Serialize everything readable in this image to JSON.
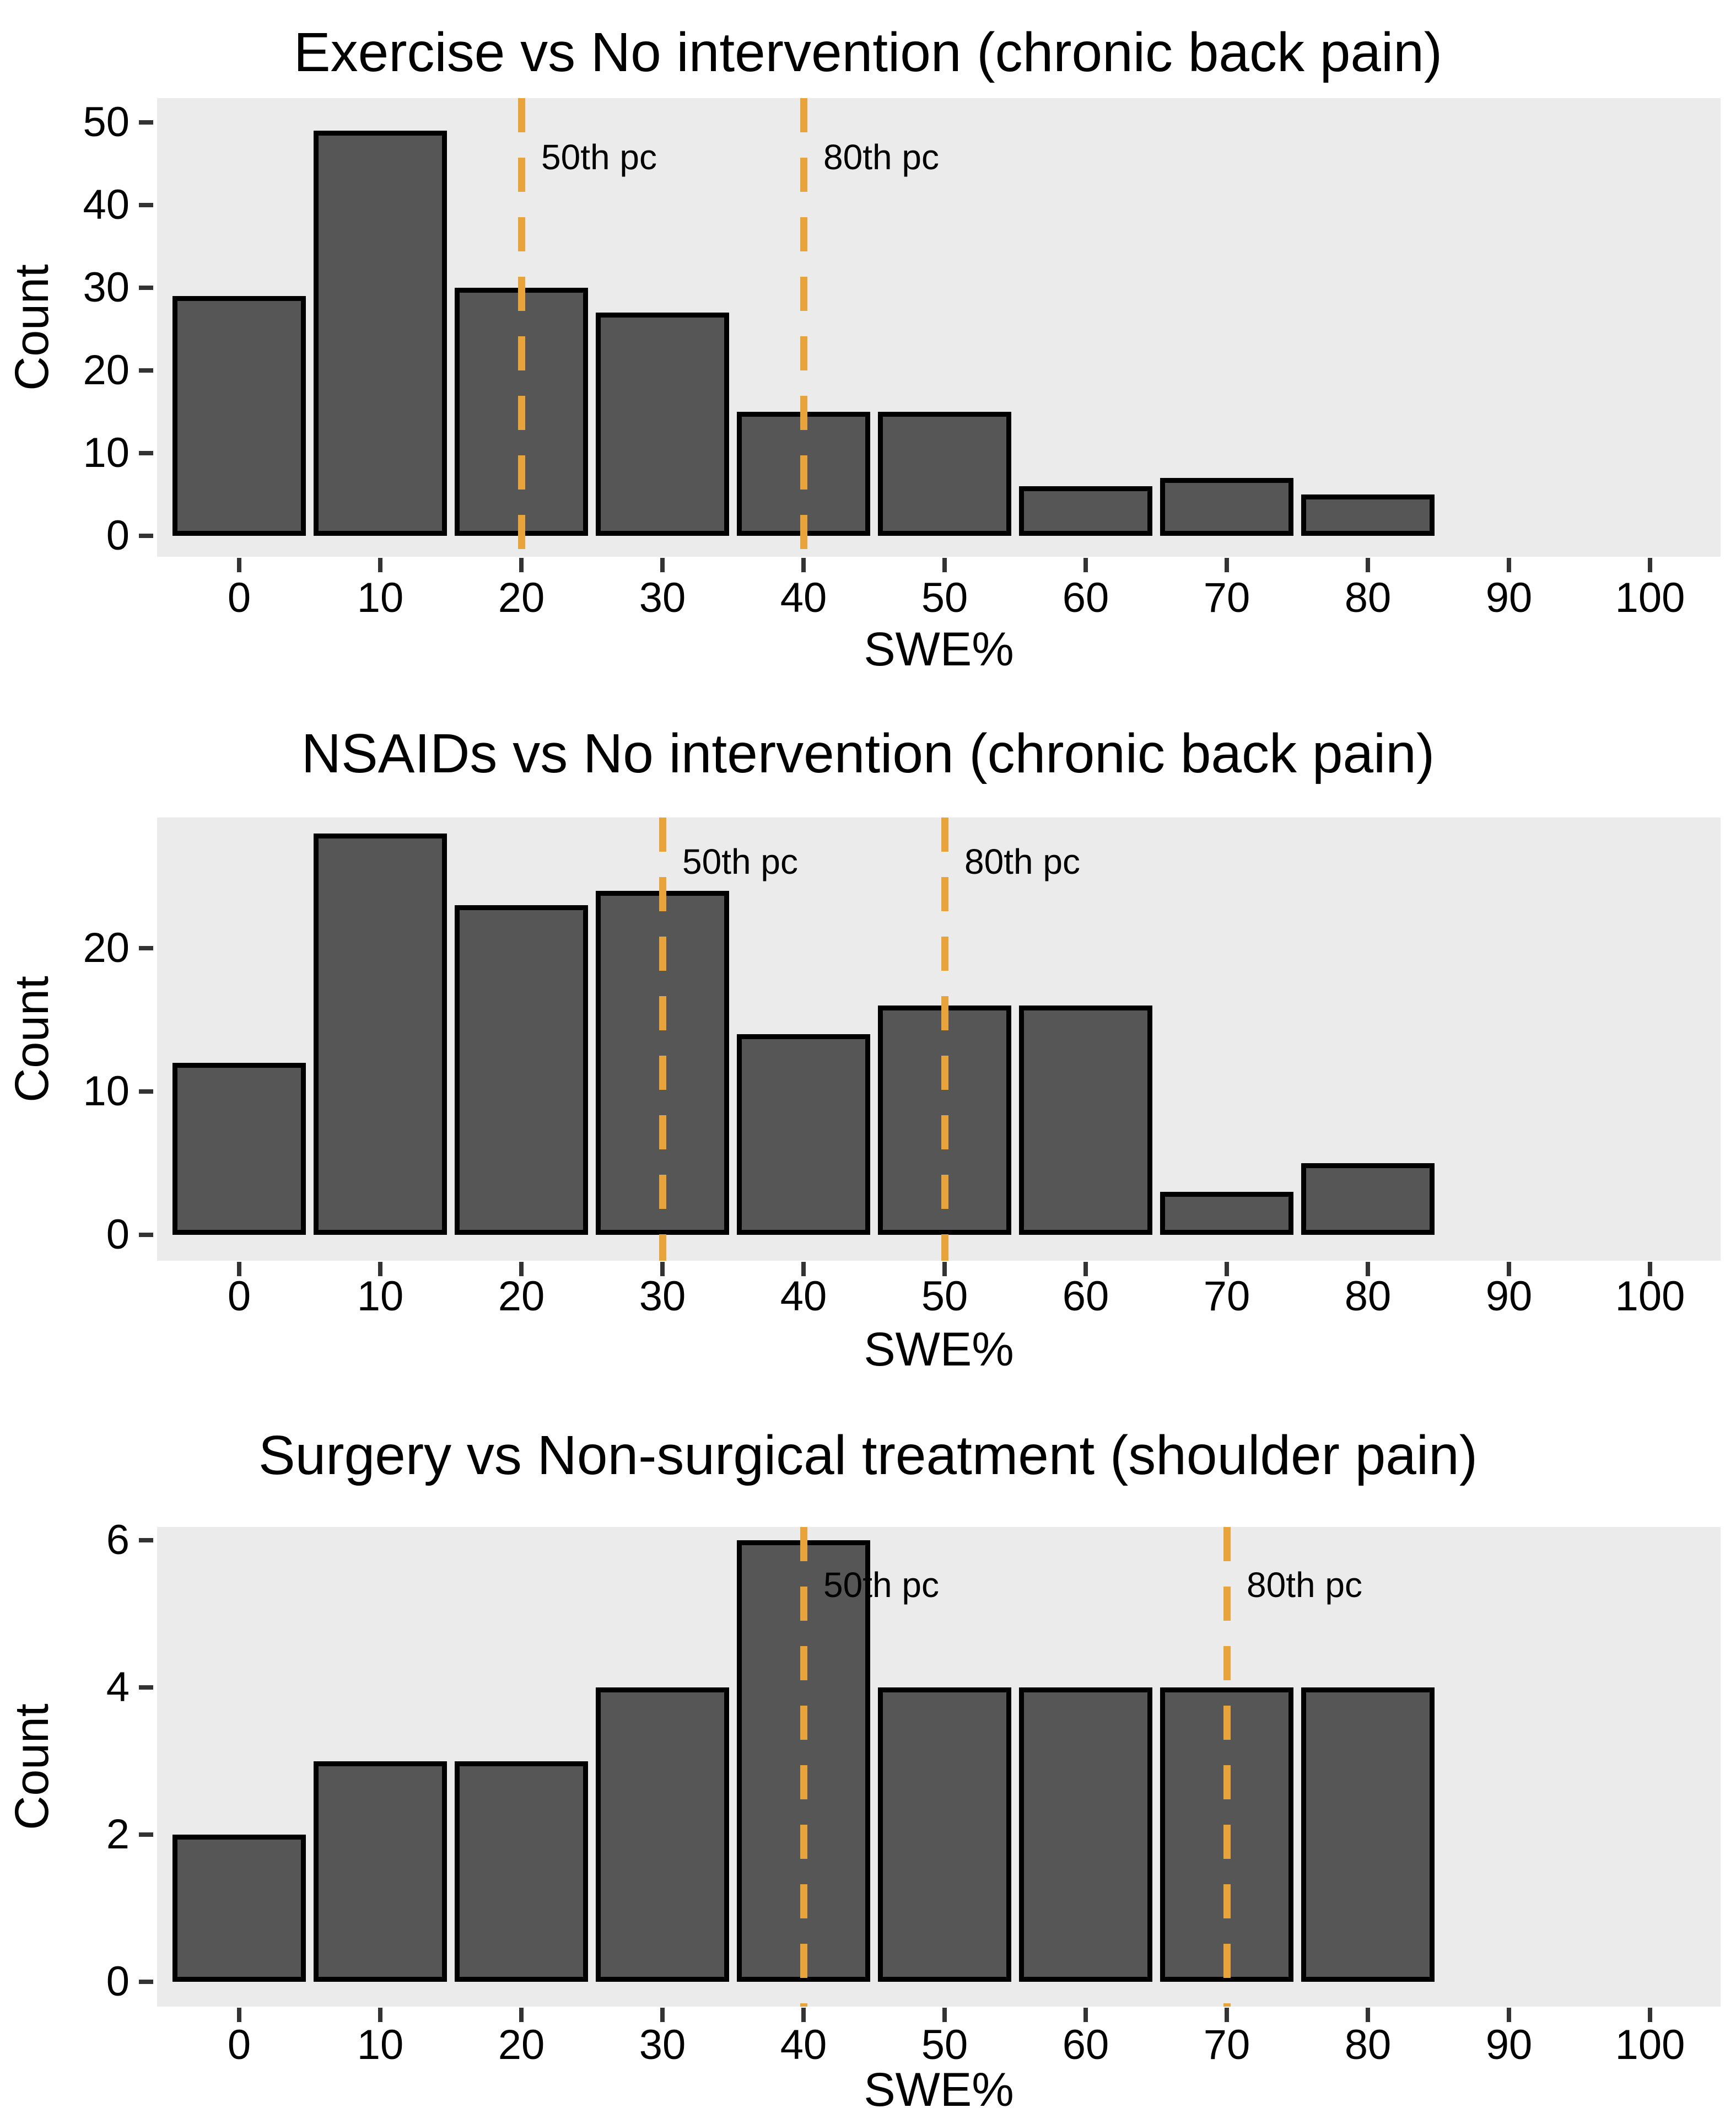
{
  "style": {
    "panel_bg": "#EBEBEB",
    "bar_fill": "#565656",
    "bar_stroke": "#000000",
    "vline_color": "#E9A33B",
    "tick_color": "#333333",
    "text_color": "#000000"
  },
  "chart_data": [
    {
      "type": "bar",
      "subtype": "histogram",
      "title": "Exercise vs No intervention (chronic back pain)",
      "xlabel": "SWE%",
      "ylabel": "Count",
      "bin_width": 10,
      "categories": [
        0,
        10,
        20,
        30,
        40,
        50,
        60,
        70,
        80
      ],
      "values": [
        29,
        49,
        30,
        27,
        15,
        15,
        6,
        7,
        5
      ],
      "x_ticks": [
        0,
        10,
        20,
        30,
        40,
        50,
        60,
        70,
        80,
        90,
        100
      ],
      "y_ticks": [
        0,
        10,
        20,
        30,
        40,
        50
      ],
      "xlim": [
        -6,
        105
      ],
      "ylim": [
        0,
        53
      ],
      "grid": false,
      "legend": "none",
      "vlines": [
        {
          "x": 20,
          "label": "50th pc"
        },
        {
          "x": 40,
          "label": "80th pc"
        }
      ]
    },
    {
      "type": "bar",
      "subtype": "histogram",
      "title": "NSAIDs vs No intervention (chronic back pain)",
      "xlabel": "SWE%",
      "ylabel": "Count",
      "bin_width": 10,
      "categories": [
        0,
        10,
        20,
        30,
        40,
        50,
        60,
        70,
        80
      ],
      "values": [
        12,
        28,
        23,
        24,
        14,
        16,
        16,
        3,
        5
      ],
      "x_ticks": [
        0,
        10,
        20,
        30,
        40,
        50,
        60,
        70,
        80,
        90,
        100
      ],
      "y_ticks": [
        0,
        10,
        20
      ],
      "xlim": [
        -6,
        105
      ],
      "ylim": [
        0,
        30
      ],
      "grid": false,
      "legend": "none",
      "vlines": [
        {
          "x": 30,
          "label": "50th pc"
        },
        {
          "x": 50,
          "label": "80th pc"
        }
      ]
    },
    {
      "type": "bar",
      "subtype": "histogram",
      "title": "Surgery vs Non-surgical treatment (shoulder pain)",
      "xlabel": "SWE%",
      "ylabel": "Count",
      "bin_width": 10,
      "categories": [
        0,
        10,
        20,
        30,
        40,
        50,
        60,
        70,
        80
      ],
      "values": [
        2,
        3,
        3,
        4,
        6,
        4,
        4,
        4,
        4
      ],
      "x_ticks": [
        0,
        10,
        20,
        30,
        40,
        50,
        60,
        70,
        80,
        90,
        100
      ],
      "y_ticks": [
        0,
        2,
        4,
        6
      ],
      "xlim": [
        -6,
        105
      ],
      "ylim": [
        0,
        6.3
      ],
      "grid": false,
      "legend": "none",
      "vlines": [
        {
          "x": 40,
          "label": "50th pc"
        },
        {
          "x": 70,
          "label": "80th pc"
        }
      ]
    }
  ]
}
